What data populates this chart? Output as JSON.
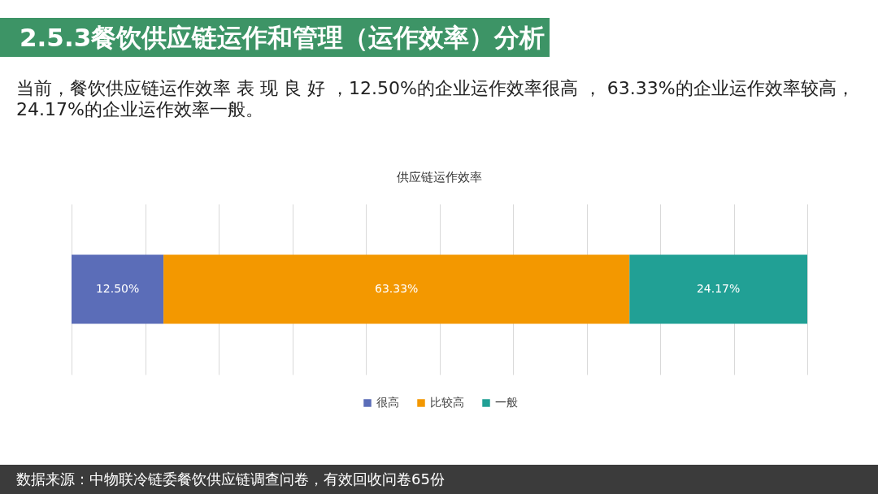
{
  "chart_data": {
    "type": "bar",
    "title": "2.5.3餐饮供应链运作和管理（运作效率）分析",
    "subtitle": "供应链运作效率",
    "annotations": [
      "当前，餐饮供应链运作效率 表 现 良 好 ，12.50%的企业运作效率很高 ， 63.33%的企业运作效率较高，24.17%的企业运作效率一般。",
      "数据来源：中物联冷链委餐饮供应链调查问卷，有效回收问卷65份"
    ],
    "categories": [
      null
    ],
    "orientation": "horizontal",
    "stacked": true,
    "series": [
      {
        "name": "很高",
        "color": "#5b6db8",
        "values": [
          12.5
        ],
        "value_labels": [
          "12.50%"
        ]
      },
      {
        "name": "比较高",
        "color": "#f39800",
        "values": [
          63.33
        ],
        "value_labels": [
          "63.33%"
        ]
      },
      {
        "name": "一般",
        "color": "#21a095",
        "values": [
          24.17
        ],
        "value_labels": [
          "24.17%"
        ]
      }
    ],
    "xlim": [
      0,
      100
    ],
    "xticks": [
      {
        "value": 0,
        "label": null
      },
      {
        "value": 10,
        "label": null
      },
      {
        "value": 20,
        "label": null
      },
      {
        "value": 30,
        "label": null
      },
      {
        "value": 40,
        "label": null
      },
      {
        "value": 50,
        "label": null
      },
      {
        "value": 60,
        "label": null
      },
      {
        "value": 70,
        "label": null
      },
      {
        "value": 80,
        "label": null
      },
      {
        "value": 90,
        "label": null
      },
      {
        "value": 100,
        "label": null
      }
    ],
    "tick_labels": false,
    "grid": "x",
    "legend": "bottom"
  }
}
